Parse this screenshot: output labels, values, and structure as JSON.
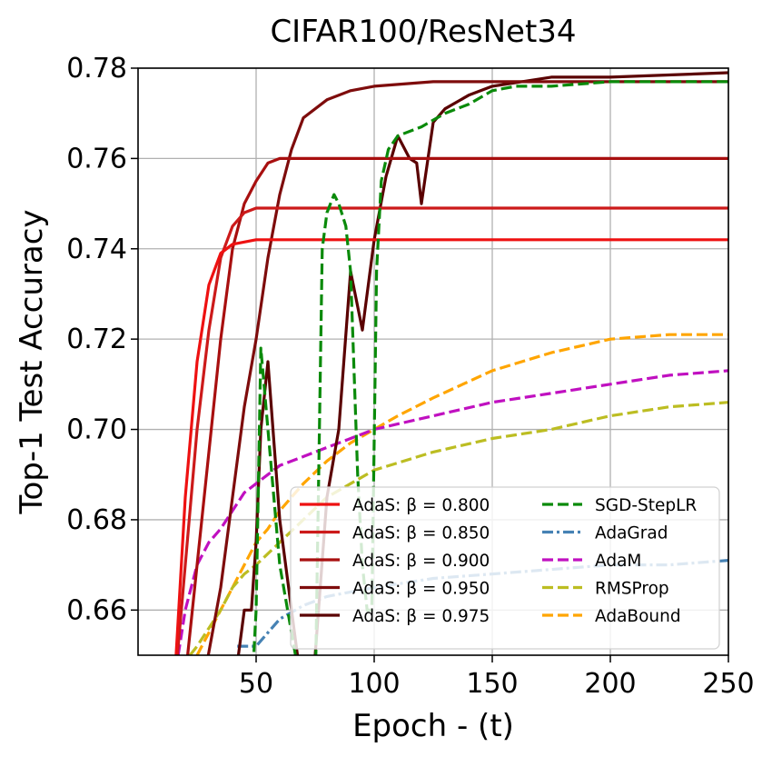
{
  "chart_data": {
    "type": "line",
    "title": "CIFAR100/ResNet34",
    "xlabel": "Epoch - (t)",
    "ylabel": "Top-1 Test Accuracy",
    "xlim": [
      0,
      250
    ],
    "ylim": [
      0.65,
      0.78
    ],
    "xticks": [
      50,
      100,
      150,
      200,
      250
    ],
    "xtick_labels": [
      "50",
      "100",
      "150",
      "200",
      "250"
    ],
    "yticks": [
      0.66,
      0.68,
      0.7,
      0.72,
      0.74,
      0.76,
      0.78
    ],
    "ytick_labels": [
      "0.66",
      "0.68",
      "0.70",
      "0.72",
      "0.74",
      "0.76",
      "0.78"
    ],
    "grid": true,
    "legend_position": "lower-right",
    "series": [
      {
        "name": "AdaS: β = 0.800",
        "color": "#ee1111",
        "dash": "solid",
        "x": [
          15,
          20,
          25,
          30,
          35,
          40,
          50,
          75,
          100,
          150,
          200,
          250
        ],
        "y": [
          0.64,
          0.685,
          0.715,
          0.732,
          0.739,
          0.741,
          0.742,
          0.742,
          0.742,
          0.742,
          0.742,
          0.742
        ]
      },
      {
        "name": "AdaS: β = 0.850",
        "color": "#cc1a1a",
        "dash": "solid",
        "x": [
          15,
          20,
          25,
          30,
          35,
          40,
          45,
          50,
          75,
          100,
          150,
          200,
          250
        ],
        "y": [
          0.64,
          0.67,
          0.7,
          0.722,
          0.738,
          0.745,
          0.748,
          0.749,
          0.749,
          0.749,
          0.749,
          0.749,
          0.749
        ]
      },
      {
        "name": "AdaS: β = 0.900",
        "color": "#a80f0f",
        "dash": "solid",
        "x": [
          20,
          25,
          30,
          35,
          40,
          45,
          50,
          55,
          60,
          75,
          100,
          150,
          200,
          250
        ],
        "y": [
          0.645,
          0.67,
          0.695,
          0.72,
          0.74,
          0.75,
          0.755,
          0.759,
          0.76,
          0.76,
          0.76,
          0.76,
          0.76,
          0.76
        ]
      },
      {
        "name": "AdaS: β = 0.950",
        "color": "#7e0c0c",
        "dash": "solid",
        "x": [
          28,
          35,
          40,
          45,
          50,
          55,
          60,
          65,
          70,
          80,
          90,
          100,
          125,
          150,
          200,
          250
        ],
        "y": [
          0.645,
          0.665,
          0.685,
          0.705,
          0.72,
          0.738,
          0.752,
          0.762,
          0.769,
          0.773,
          0.775,
          0.776,
          0.777,
          0.777,
          0.777,
          0.777
        ]
      },
      {
        "name": "AdaS: β = 0.975",
        "color": "#5a0000",
        "dash": "solid",
        "x": [
          40,
          45,
          48,
          50,
          52,
          55,
          60,
          65,
          70,
          75,
          80,
          85,
          90,
          95,
          100,
          105,
          110,
          115,
          118,
          120,
          125,
          130,
          140,
          150,
          175,
          200,
          250
        ],
        "y": [
          0.64,
          0.66,
          0.66,
          0.675,
          0.7,
          0.715,
          0.68,
          0.66,
          0.64,
          0.65,
          0.685,
          0.7,
          0.735,
          0.722,
          0.742,
          0.756,
          0.765,
          0.76,
          0.759,
          0.75,
          0.768,
          0.771,
          0.774,
          0.776,
          0.778,
          0.778,
          0.779
        ]
      },
      {
        "name": "SGD-StepLR",
        "color": "#0a8a0a",
        "dash": "dashed",
        "x": [
          45,
          48,
          50,
          52,
          55,
          60,
          65,
          70,
          75,
          78,
          80,
          83,
          85,
          88,
          90,
          93,
          95,
          97,
          99,
          101,
          103,
          106,
          110,
          120,
          130,
          140,
          150,
          160,
          175,
          200,
          250
        ],
        "y": [
          0.62,
          0.64,
          0.66,
          0.718,
          0.7,
          0.67,
          0.655,
          0.64,
          0.64,
          0.74,
          0.748,
          0.752,
          0.75,
          0.745,
          0.735,
          0.69,
          0.67,
          0.66,
          0.66,
          0.735,
          0.755,
          0.762,
          0.765,
          0.767,
          0.77,
          0.772,
          0.775,
          0.776,
          0.776,
          0.777,
          0.777
        ]
      },
      {
        "name": "AdaGrad",
        "color": "#4682b4",
        "dash": "dashdot",
        "x": [
          42,
          50,
          60,
          70,
          80,
          90,
          100,
          125,
          150,
          175,
          200,
          225,
          250
        ],
        "y": [
          0.652,
          0.652,
          0.658,
          0.661,
          0.663,
          0.664,
          0.665,
          0.667,
          0.668,
          0.669,
          0.67,
          0.67,
          0.671
        ]
      },
      {
        "name": "AdaM",
        "color": "#c010c0",
        "dash": "dashed",
        "x": [
          17,
          20,
          25,
          30,
          35,
          40,
          45,
          50,
          55,
          60,
          70,
          80,
          90,
          100,
          125,
          150,
          175,
          200,
          225,
          250
        ],
        "y": [
          0.65,
          0.66,
          0.67,
          0.675,
          0.678,
          0.682,
          0.686,
          0.688,
          0.69,
          0.692,
          0.694,
          0.696,
          0.698,
          0.7,
          0.703,
          0.706,
          0.708,
          0.71,
          0.712,
          0.713
        ]
      },
      {
        "name": "RMSProp",
        "color": "#bcbd22",
        "dash": "dashed",
        "x": [
          22,
          25,
          30,
          35,
          40,
          45,
          50,
          60,
          70,
          80,
          90,
          100,
          125,
          150,
          175,
          200,
          225,
          250
        ],
        "y": [
          0.65,
          0.652,
          0.656,
          0.66,
          0.665,
          0.668,
          0.67,
          0.675,
          0.68,
          0.685,
          0.688,
          0.691,
          0.695,
          0.698,
          0.7,
          0.703,
          0.705,
          0.706
        ]
      },
      {
        "name": "AdaBound",
        "color": "#ffa500",
        "dash": "dashed",
        "x": [
          25,
          30,
          35,
          40,
          45,
          50,
          55,
          60,
          70,
          80,
          90,
          100,
          110,
          125,
          150,
          175,
          200,
          225,
          250
        ],
        "y": [
          0.65,
          0.655,
          0.66,
          0.665,
          0.67,
          0.675,
          0.678,
          0.682,
          0.688,
          0.693,
          0.697,
          0.7,
          0.703,
          0.707,
          0.713,
          0.717,
          0.72,
          0.721,
          0.721
        ]
      }
    ]
  }
}
